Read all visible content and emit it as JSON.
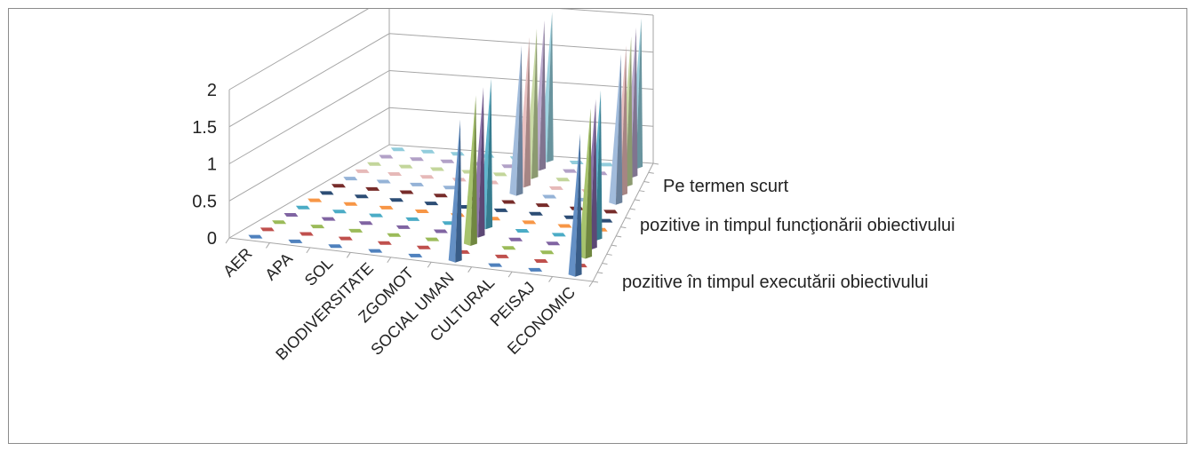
{
  "chart_data": {
    "type": "bar",
    "subtype": "3d-cone",
    "title": "",
    "xlabel": "",
    "ylabel": "",
    "zlim": [
      0,
      2
    ],
    "z_ticks": [
      "0",
      "0.5",
      "1",
      "1.5",
      "2"
    ],
    "grid": true,
    "legend": "none",
    "categories": [
      "AER",
      "APA",
      "SOL",
      "BIODIVERSITATE",
      "ZGOMOT",
      "SOCIAL UMAN",
      "CULTURAL",
      "PEISAJ",
      "ECONOMIC"
    ],
    "depth_categories": [
      "pozitive în timpul executării obiectivului",
      "pozitive in timpul funcţionării obiectivului",
      "Pe termen scurt"
    ],
    "series": [
      {
        "color": "#4f81bd",
        "values": [
          0,
          0,
          0,
          0,
          0,
          1.9,
          0,
          0,
          1.9
        ]
      },
      {
        "color": "#c0504d",
        "values": [
          0,
          0,
          0,
          0,
          0,
          0,
          0,
          0,
          0
        ]
      },
      {
        "color": "#9bbb59",
        "values": [
          0,
          0,
          0,
          0,
          0,
          2,
          0,
          0,
          2
        ]
      },
      {
        "color": "#8064a2",
        "values": [
          0,
          0,
          0,
          0,
          0,
          2,
          0,
          0,
          2
        ]
      },
      {
        "color": "#4bacc6",
        "values": [
          0,
          0,
          0,
          0,
          0,
          2,
          0,
          0,
          2
        ]
      },
      {
        "color": "#f79646",
        "values": [
          0,
          0,
          0,
          0,
          0,
          0,
          0,
          0,
          0
        ]
      },
      {
        "color": "#2c4d75",
        "values": [
          0,
          0,
          0,
          0,
          0,
          0,
          0,
          0,
          0
        ]
      },
      {
        "color": "#772c2a",
        "values": [
          0,
          0,
          0,
          0,
          0,
          0,
          0,
          0,
          0
        ]
      },
      {
        "color": "#95b3d7",
        "values": [
          0,
          0,
          0,
          0,
          0,
          2,
          0,
          0,
          2
        ]
      },
      {
        "color": "#e6b9b8",
        "values": [
          0,
          0,
          0,
          0,
          0,
          2,
          0,
          0,
          2
        ]
      },
      {
        "color": "#c3d69b",
        "values": [
          0,
          0,
          0,
          0,
          0,
          2,
          0,
          0,
          2
        ]
      },
      {
        "color": "#b2a1c7",
        "values": [
          0,
          0,
          0,
          0,
          0,
          2,
          0,
          0,
          2
        ]
      },
      {
        "color": "#92cddc",
        "values": [
          0,
          0,
          0,
          0,
          0,
          2,
          0,
          0,
          2
        ]
      }
    ]
  }
}
